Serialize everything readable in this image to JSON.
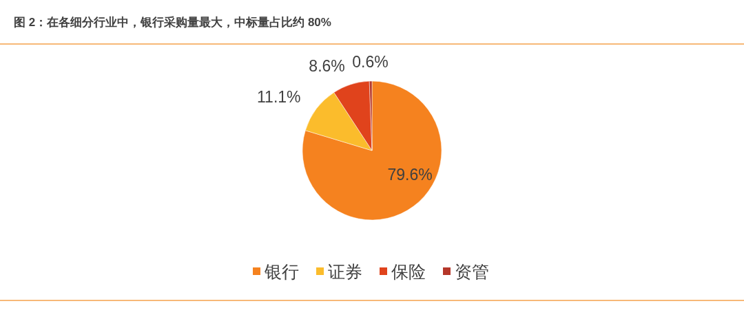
{
  "chart_data": {
    "type": "pie",
    "title": "图 2：在各细分行业中，银行采购量最大，中标量占比约 80%",
    "categories": [
      "银行",
      "证券",
      "保险",
      "资管"
    ],
    "values": [
      79.6,
      11.1,
      8.6,
      0.6
    ],
    "colors": [
      "#f5821f",
      "#fbbc2c",
      "#e0431c",
      "#b5372a"
    ],
    "value_labels": [
      "79.6%",
      "11.1%",
      "8.6%",
      "0.6%"
    ],
    "legend": "bottom"
  }
}
